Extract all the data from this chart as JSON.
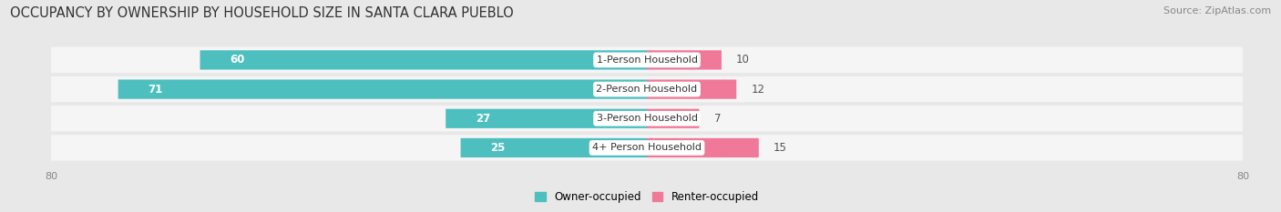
{
  "title": "OCCUPANCY BY OWNERSHIP BY HOUSEHOLD SIZE IN SANTA CLARA PUEBLO",
  "source": "Source: ZipAtlas.com",
  "categories": [
    "1-Person Household",
    "2-Person Household",
    "3-Person Household",
    "4+ Person Household"
  ],
  "owner_values": [
    60,
    71,
    27,
    25
  ],
  "renter_values": [
    10,
    12,
    7,
    15
  ],
  "owner_color": "#4dbfbf",
  "renter_color": "#f07898",
  "owner_label": "Owner-occupied",
  "renter_label": "Renter-occupied",
  "xlim": [
    -80,
    80
  ],
  "background_color": "#e8e8e8",
  "row_bg_color": "#f5f5f5",
  "bar_height": 0.62,
  "title_fontsize": 10.5,
  "label_fontsize": 8.0,
  "value_fontsize": 8.5,
  "legend_fontsize": 8.5,
  "source_fontsize": 8.0,
  "axis_label_color": "#888888"
}
